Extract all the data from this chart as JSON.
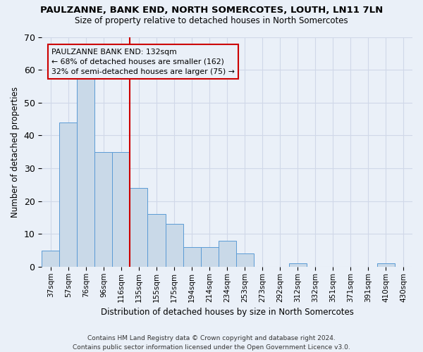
{
  "title1": "PAULZANNE, BANK END, NORTH SOMERCOTES, LOUTH, LN11 7LN",
  "title2": "Size of property relative to detached houses in North Somercotes",
  "xlabel": "Distribution of detached houses by size in North Somercotes",
  "ylabel": "Number of detached properties",
  "categories": [
    "37sqm",
    "57sqm",
    "76sqm",
    "96sqm",
    "116sqm",
    "135sqm",
    "155sqm",
    "175sqm",
    "194sqm",
    "214sqm",
    "234sqm",
    "253sqm",
    "273sqm",
    "292sqm",
    "312sqm",
    "332sqm",
    "351sqm",
    "371sqm",
    "391sqm",
    "410sqm",
    "430sqm"
  ],
  "values": [
    5,
    44,
    59,
    35,
    35,
    24,
    16,
    13,
    6,
    6,
    8,
    4,
    0,
    0,
    1,
    0,
    0,
    0,
    0,
    1,
    0
  ],
  "bar_color": "#c9d9e8",
  "bar_edge_color": "#5b9bd5",
  "vline_color": "#cc0000",
  "annotation_text": "PAULZANNE BANK END: 132sqm\n← 68% of detached houses are smaller (162)\n32% of semi-detached houses are larger (75) →",
  "annotation_box_color": "#cc0000",
  "ylim": [
    0,
    70
  ],
  "yticks": [
    0,
    10,
    20,
    30,
    40,
    50,
    60,
    70
  ],
  "grid_color": "#d0d8e8",
  "background_color": "#eaf0f8",
  "footer": "Contains HM Land Registry data © Crown copyright and database right 2024.\nContains public sector information licensed under the Open Government Licence v3.0."
}
